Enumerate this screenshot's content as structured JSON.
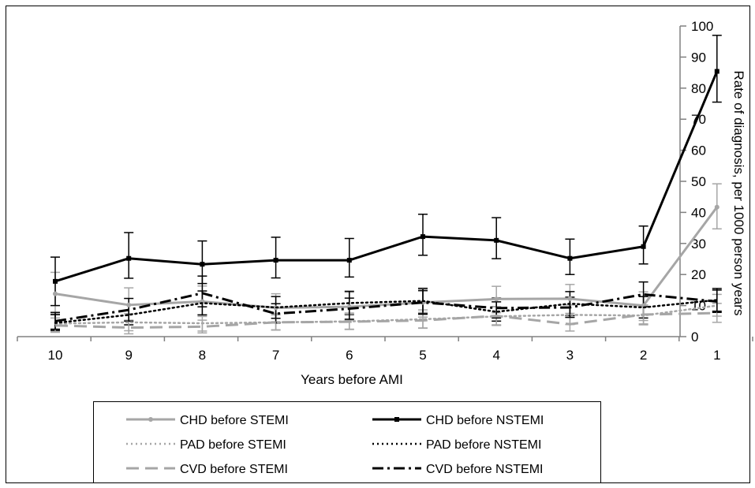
{
  "chart_data": {
    "type": "line",
    "title": "",
    "xlabel": "Years before AMI",
    "ylabel": "Rate of diagnosis, per 1000 person years",
    "categories": [
      "10",
      "9",
      "8",
      "7",
      "6",
      "5",
      "4",
      "3",
      "2",
      "1"
    ],
    "ylim": [
      0,
      100
    ],
    "yticks": [
      "0",
      "10",
      "20",
      "30",
      "40",
      "50",
      "60",
      "70",
      "80",
      "90",
      "100"
    ],
    "y_axis_side": "right",
    "grid": false,
    "legend_position": "bottom",
    "series": [
      {
        "name": "CHD before STEMI",
        "color": "#a6a6a6",
        "dash": "solid",
        "marker": "circle",
        "values": [
          13.8,
          10.2,
          11.3,
          9.3,
          9.6,
          11.0,
          12.1,
          12.2,
          10.0,
          41.7
        ],
        "error": [
          [
            6.9,
            20.7
          ],
          [
            5.3,
            15.7
          ],
          [
            6.5,
            16.3
          ],
          [
            4.8,
            13.8
          ],
          [
            5.3,
            14.3
          ],
          [
            6.3,
            15.7
          ],
          [
            7.7,
            16.2
          ],
          [
            7.5,
            16.8
          ],
          [
            5.2,
            14.4
          ],
          [
            34.7,
            49.2
          ]
        ]
      },
      {
        "name": "CHD before NSTEMI",
        "color": "#000000",
        "dash": "solid",
        "marker": "square",
        "values": [
          17.8,
          25.2,
          23.3,
          24.6,
          24.6,
          32.2,
          31.0,
          25.2,
          29.0,
          85.4
        ],
        "error": [
          [
            10.0,
            25.6
          ],
          [
            18.8,
            33.5
          ],
          [
            17.1,
            30.8
          ],
          [
            18.9,
            32.0
          ],
          [
            19.2,
            31.6
          ],
          [
            26.2,
            39.4
          ],
          [
            25.1,
            38.3
          ],
          [
            20.0,
            31.4
          ],
          [
            23.4,
            35.6
          ],
          [
            75.5,
            97.0
          ]
        ]
      },
      {
        "name": "PAD before STEMI",
        "color": "#a6a6a6",
        "dash": "dot",
        "marker": "none",
        "values": [
          4.2,
          4.6,
          4.3,
          4.6,
          4.9,
          5.6,
          6.5,
          7.0,
          6.8,
          10.0
        ],
        "error": [
          [
            1.8,
            7.2
          ],
          [
            1.9,
            7.4
          ],
          [
            1.8,
            7.0
          ],
          [
            2.1,
            7.4
          ],
          [
            2.3,
            7.6
          ],
          [
            2.8,
            8.6
          ],
          [
            3.6,
            9.6
          ],
          [
            3.9,
            10.2
          ],
          [
            3.8,
            9.8
          ],
          [
            6.6,
            13.6
          ]
        ]
      },
      {
        "name": "PAD before NSTEMI",
        "color": "#000000",
        "dash": "dot",
        "marker": "none",
        "values": [
          4.4,
          7.0,
          10.8,
          9.4,
          10.8,
          11.5,
          8.0,
          10.6,
          9.4,
          11.8
        ],
        "error": [
          [
            2.0,
            7.2
          ],
          [
            3.8,
            10.3
          ],
          [
            7.0,
            14.7
          ],
          [
            5.9,
            12.9
          ],
          [
            7.1,
            14.6
          ],
          [
            7.6,
            15.4
          ],
          [
            5.0,
            11.2
          ],
          [
            6.8,
            14.5
          ],
          [
            6.0,
            12.9
          ],
          [
            8.2,
            15.5
          ]
        ]
      },
      {
        "name": "CVD before STEMI",
        "color": "#a6a6a6",
        "dash": "longdash",
        "marker": "none",
        "values": [
          3.6,
          2.9,
          3.2,
          4.6,
          4.8,
          5.2,
          6.7,
          4.0,
          7.1,
          7.6
        ],
        "error": [
          [
            1.4,
            6.0
          ],
          [
            0.9,
            5.1
          ],
          [
            1.2,
            5.3
          ],
          [
            2.2,
            7.0
          ],
          [
            2.4,
            7.3
          ],
          [
            2.7,
            7.8
          ],
          [
            3.8,
            9.7
          ],
          [
            1.8,
            6.3
          ],
          [
            4.1,
            10.2
          ],
          [
            4.6,
            10.7
          ]
        ]
      },
      {
        "name": "CVD before NSTEMI",
        "color": "#000000",
        "dash": "dashdot",
        "marker": "none",
        "values": [
          5.0,
          8.6,
          14.0,
          7.4,
          9.0,
          11.0,
          9.2,
          9.4,
          13.6,
          11.3
        ],
        "error": [
          [
            2.4,
            7.8
          ],
          [
            5.0,
            12.3
          ],
          [
            9.6,
            19.5
          ],
          [
            4.4,
            10.6
          ],
          [
            5.6,
            12.4
          ],
          [
            7.2,
            14.8
          ],
          [
            6.0,
            12.4
          ],
          [
            6.2,
            12.7
          ],
          [
            9.6,
            17.6
          ],
          [
            7.8,
            15.0
          ]
        ]
      }
    ]
  }
}
